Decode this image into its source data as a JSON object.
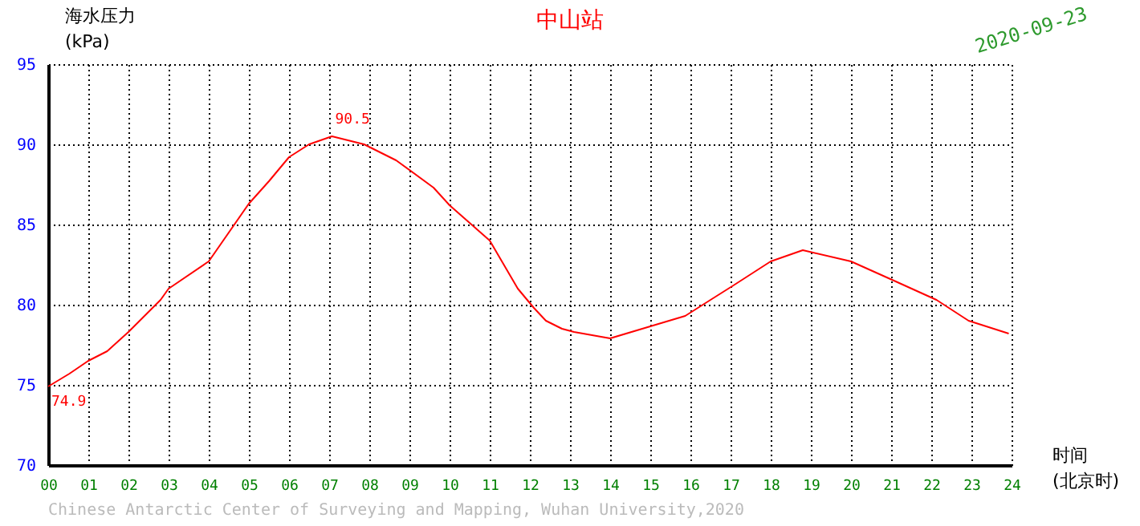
{
  "chart_data": {
    "type": "line",
    "title": "中山站",
    "subtitle": "2020-09-23",
    "xlabel": "时间\n(北京时)",
    "ylabel": "海水压力\n(kPa)",
    "x": [
      0,
      0.53,
      1.0,
      1.47,
      2.0,
      2.8,
      3.0,
      4.0,
      5.0,
      5.5,
      6.0,
      6.5,
      7.07,
      7.87,
      8.67,
      9.6,
      10.0,
      11.0,
      11.7,
      12.1,
      12.4,
      12.8,
      13.1,
      14.0,
      14.8,
      15.87,
      16.5,
      17.07,
      18.0,
      18.8,
      20.0,
      21.07,
      22.13,
      22.93,
      23.93
    ],
    "series": [
      {
        "color": "#ff0000",
        "values": [
          74.9,
          75.7,
          76.5,
          77.1,
          78.3,
          80.3,
          81.0,
          82.7,
          86.3,
          87.7,
          89.2,
          90.0,
          90.5,
          90.0,
          89.0,
          87.3,
          86.2,
          84.0,
          81.0,
          79.8,
          79.0,
          78.5,
          78.3,
          77.9,
          78.5,
          79.3,
          80.3,
          81.2,
          82.7,
          83.4,
          82.7,
          81.5,
          80.3,
          79.0,
          78.2
        ]
      }
    ],
    "xlim": [
      0,
      24
    ],
    "xticks": [
      {
        "value": 0,
        "label": "00"
      },
      {
        "value": 1,
        "label": "01"
      },
      {
        "value": 2,
        "label": "02"
      },
      {
        "value": 3,
        "label": "03"
      },
      {
        "value": 4,
        "label": "04"
      },
      {
        "value": 5,
        "label": "05"
      },
      {
        "value": 6,
        "label": "06"
      },
      {
        "value": 7,
        "label": "07"
      },
      {
        "value": 8,
        "label": "08"
      },
      {
        "value": 9,
        "label": "09"
      },
      {
        "value": 10,
        "label": "10"
      },
      {
        "value": 11,
        "label": "11"
      },
      {
        "value": 12,
        "label": "12"
      },
      {
        "value": 13,
        "label": "13"
      },
      {
        "value": 14,
        "label": "14"
      },
      {
        "value": 15,
        "label": "15"
      },
      {
        "value": 16,
        "label": "16"
      },
      {
        "value": 17,
        "label": "17"
      },
      {
        "value": 18,
        "label": "18"
      },
      {
        "value": 19,
        "label": "19"
      },
      {
        "value": 20,
        "label": "20"
      },
      {
        "value": 21,
        "label": "21"
      },
      {
        "value": 22,
        "label": "22"
      },
      {
        "value": 23,
        "label": "23"
      },
      {
        "value": 24,
        "label": "24"
      }
    ],
    "ylim": [
      70,
      95
    ],
    "yticks": [
      70,
      75,
      80,
      85,
      90,
      95
    ],
    "grid": true,
    "annotations": [
      {
        "text": "90.5",
        "x": 7.07,
        "y": 90.5
      },
      {
        "text": "74.9",
        "x": 0,
        "y": 74.9
      },
      "Chinese Antarctic Center of Surveying and Mapping, Wuhan University,2020"
    ]
  }
}
